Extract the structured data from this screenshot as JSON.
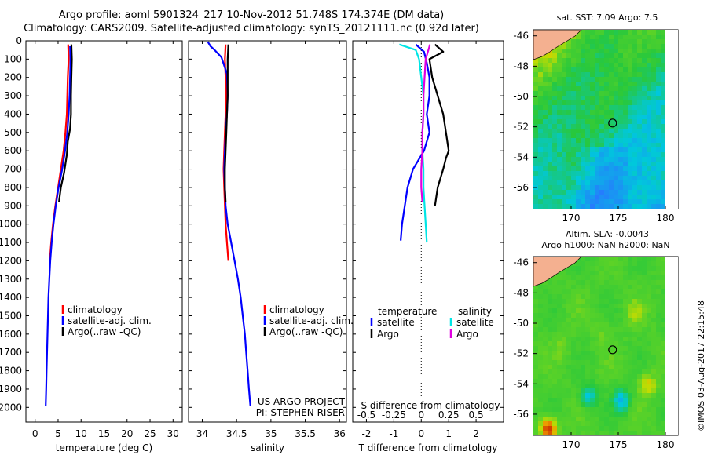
{
  "header": {
    "line1": "Argo profile: aoml 5901324_217 10-Nov-2012 51.748S 174.374E (DM data)",
    "line2": "Climatology: CARS2009. Satellite-adjusted climatology: synTS_20121111.nc (0.92d later)"
  },
  "depth_ticks": [
    0,
    100,
    200,
    300,
    400,
    500,
    600,
    700,
    800,
    900,
    1000,
    1100,
    1200,
    1300,
    1400,
    1500,
    1600,
    1700,
    1800,
    1900,
    2000
  ],
  "colors": {
    "red": "#ff0000",
    "blue": "#0000ff",
    "black": "#000000",
    "cyan": "#00e5e5",
    "magenta": "#e000e0"
  },
  "chart_data": [
    {
      "type": "line",
      "xlabel": "temperature (deg C)",
      "xlim": [
        -2,
        32
      ],
      "xticks": [
        0,
        5,
        10,
        15,
        20,
        25,
        30
      ],
      "ylim": [
        0,
        2080
      ],
      "legend": [
        "climatology",
        "satellite-adj. clim.",
        "Argo(..raw -QC)"
      ],
      "series": [
        {
          "name": "climatology",
          "color": "red",
          "points": [
            [
              7.2,
              20
            ],
            [
              7.3,
              100
            ],
            [
              7.1,
              200
            ],
            [
              7.0,
              300
            ],
            [
              6.9,
              400
            ],
            [
              6.6,
              500
            ],
            [
              6.2,
              600
            ],
            [
              5.6,
              700
            ],
            [
              5.0,
              800
            ],
            [
              4.4,
              900
            ],
            [
              3.9,
              1000
            ],
            [
              3.5,
              1100
            ],
            [
              3.2,
              1200
            ]
          ]
        },
        {
          "name": "satellite-adj. clim.",
          "color": "blue",
          "points": [
            [
              7.6,
              30
            ],
            [
              7.7,
              100
            ],
            [
              7.6,
              200
            ],
            [
              7.5,
              300
            ],
            [
              7.3,
              400
            ],
            [
              7.0,
              500
            ],
            [
              6.5,
              600
            ],
            [
              5.9,
              700
            ],
            [
              5.1,
              800
            ],
            [
              4.5,
              900
            ],
            [
              4.0,
              1000
            ],
            [
              3.6,
              1100
            ],
            [
              3.3,
              1200
            ],
            [
              3.1,
              1300
            ],
            [
              2.9,
              1400
            ],
            [
              2.8,
              1500
            ],
            [
              2.7,
              1600
            ],
            [
              2.6,
              1700
            ],
            [
              2.5,
              1800
            ],
            [
              2.4,
              1900
            ],
            [
              2.3,
              1990
            ]
          ]
        },
        {
          "name": "Argo(..raw -QC)",
          "color": "black",
          "points": [
            [
              7.9,
              20
            ],
            [
              8.0,
              100
            ],
            [
              7.9,
              200
            ],
            [
              7.8,
              300
            ],
            [
              7.8,
              400
            ],
            [
              7.6,
              480
            ],
            [
              7.1,
              550
            ],
            [
              6.9,
              620
            ],
            [
              6.3,
              720
            ],
            [
              5.6,
              800
            ],
            [
              5.2,
              880
            ]
          ]
        }
      ]
    },
    {
      "type": "line",
      "xlabel": "salinity",
      "xlim": [
        33.8,
        36.1
      ],
      "xticks": [
        34,
        34.5,
        35,
        35.5,
        36
      ],
      "xticklabels": [
        "34",
        "34.5",
        "35",
        "35.5",
        "36"
      ],
      "ylim": [
        0,
        2080
      ],
      "legend": [
        "climatology",
        "satellite-adj. clim.",
        "Argo(..raw -QC)"
      ],
      "annotation": [
        "US ARGO PROJECT",
        "PI: STEPHEN RISER"
      ],
      "series": [
        {
          "name": "climatology",
          "color": "red",
          "points": [
            [
              34.34,
              20
            ],
            [
              34.33,
              100
            ],
            [
              34.34,
              200
            ],
            [
              34.35,
              300
            ],
            [
              34.34,
              400
            ],
            [
              34.33,
              500
            ],
            [
              34.32,
              600
            ],
            [
              34.31,
              700
            ],
            [
              34.32,
              800
            ],
            [
              34.33,
              900
            ],
            [
              34.34,
              1000
            ],
            [
              34.36,
              1100
            ],
            [
              34.38,
              1200
            ]
          ]
        },
        {
          "name": "satellite-adj. clim.",
          "color": "blue",
          "points": [
            [
              34.08,
              5
            ],
            [
              34.12,
              30
            ],
            [
              34.18,
              50
            ],
            [
              34.28,
              90
            ],
            [
              34.36,
              180
            ],
            [
              34.37,
              300
            ],
            [
              34.36,
              400
            ],
            [
              34.34,
              500
            ],
            [
              34.33,
              600
            ],
            [
              34.32,
              700
            ],
            [
              34.33,
              800
            ],
            [
              34.34,
              900
            ],
            [
              34.37,
              1000
            ],
            [
              34.42,
              1100
            ],
            [
              34.47,
              1200
            ],
            [
              34.52,
              1300
            ],
            [
              34.56,
              1400
            ],
            [
              34.59,
              1500
            ],
            [
              34.62,
              1600
            ],
            [
              34.64,
              1700
            ],
            [
              34.66,
              1800
            ],
            [
              34.68,
              1900
            ],
            [
              34.7,
              1990
            ]
          ]
        },
        {
          "name": "Argo(..raw -QC)",
          "color": "black",
          "points": [
            [
              34.38,
              20
            ],
            [
              34.37,
              100
            ],
            [
              34.37,
              200
            ],
            [
              34.37,
              300
            ],
            [
              34.36,
              400
            ],
            [
              34.35,
              500
            ],
            [
              34.34,
              600
            ],
            [
              34.33,
              700
            ],
            [
              34.33,
              800
            ],
            [
              34.34,
              880
            ]
          ]
        }
      ]
    },
    {
      "type": "line",
      "xlabel": "T difference from climatology",
      "xlim": [
        -2.5,
        3
      ],
      "xticks": [
        -2,
        -1,
        0,
        1,
        2
      ],
      "x2label": "S difference from climatology",
      "x2lim": [
        -0.625,
        0.75
      ],
      "x2ticks": [
        -0.5,
        -0.25,
        0,
        0.25,
        0.5
      ],
      "x2ticklabels": [
        "-0.5",
        "-0.25",
        "0",
        "0.25",
        "0.5"
      ],
      "ylim": [
        0,
        2080
      ],
      "legend_headers": [
        "temperature",
        "salinity"
      ],
      "legend": [
        "satellite",
        "Argo",
        "satellite",
        "Argo"
      ],
      "series": [
        {
          "name": "satellite",
          "color": "blue",
          "axis": "T",
          "points": [
            [
              -0.2,
              20
            ],
            [
              0.1,
              60
            ],
            [
              0.2,
              120
            ],
            [
              0.3,
              200
            ],
            [
              0.3,
              300
            ],
            [
              0.2,
              400
            ],
            [
              0.3,
              500
            ],
            [
              0.1,
              600
            ],
            [
              -0.3,
              700
            ],
            [
              -0.5,
              800
            ],
            [
              -0.6,
              900
            ],
            [
              -0.7,
              1000
            ],
            [
              -0.75,
              1090
            ]
          ]
        },
        {
          "name": "Argo",
          "color": "black",
          "axis": "T",
          "points": [
            [
              0.5,
              20
            ],
            [
              0.8,
              60
            ],
            [
              0.3,
              100
            ],
            [
              0.4,
              200
            ],
            [
              0.6,
              300
            ],
            [
              0.8,
              400
            ],
            [
              0.9,
              500
            ],
            [
              1.0,
              600
            ],
            [
              0.9,
              640
            ],
            [
              0.8,
              700
            ],
            [
              0.6,
              800
            ],
            [
              0.5,
              900
            ]
          ]
        },
        {
          "name": "satellite",
          "color": "cyan",
          "axis": "S",
          "points": [
            [
              -0.2,
              20
            ],
            [
              -0.05,
              50
            ],
            [
              -0.02,
              100
            ],
            [
              0,
              200
            ],
            [
              0.02,
              300
            ],
            [
              0.02,
              400
            ],
            [
              0.01,
              500
            ],
            [
              0.01,
              600
            ],
            [
              0.02,
              700
            ],
            [
              0.02,
              800
            ],
            [
              0.03,
              900
            ],
            [
              0.04,
              1000
            ],
            [
              0.05,
              1100
            ]
          ]
        },
        {
          "name": "Argo",
          "color": "magenta",
          "axis": "S",
          "points": [
            [
              0.08,
              20
            ],
            [
              0.06,
              60
            ],
            [
              0.04,
              100
            ],
            [
              0.03,
              200
            ],
            [
              0.02,
              300
            ],
            [
              0.02,
              400
            ],
            [
              0.01,
              500
            ],
            [
              0.01,
              600
            ],
            [
              0.0,
              700
            ],
            [
              0.0,
              800
            ],
            [
              0.01,
              880
            ]
          ]
        }
      ]
    },
    {
      "type": "heatmap",
      "title": "sat. SST: 7.09 Argo: 7.5",
      "xticks": [
        170,
        175,
        180
      ],
      "yticks": [
        -46,
        -48,
        -50,
        -52,
        -54,
        -56
      ],
      "xlim": [
        166,
        180
      ],
      "ylim": [
        -57.4,
        -45.6
      ],
      "marker": [
        174.4,
        -51.75
      ]
    },
    {
      "type": "heatmap",
      "title": "Altim. SLA: -0.0043",
      "subtitle": "Argo h1000: NaN h2000: NaN",
      "xticks": [
        170,
        175,
        180
      ],
      "yticks": [
        -46,
        -48,
        -50,
        -52,
        -54,
        -56
      ],
      "xlim": [
        166,
        180
      ],
      "ylim": [
        -57.4,
        -45.6
      ],
      "marker": [
        174.4,
        -51.75
      ]
    }
  ],
  "credit": "©IMOS 03-Aug-2017 22:15:48"
}
